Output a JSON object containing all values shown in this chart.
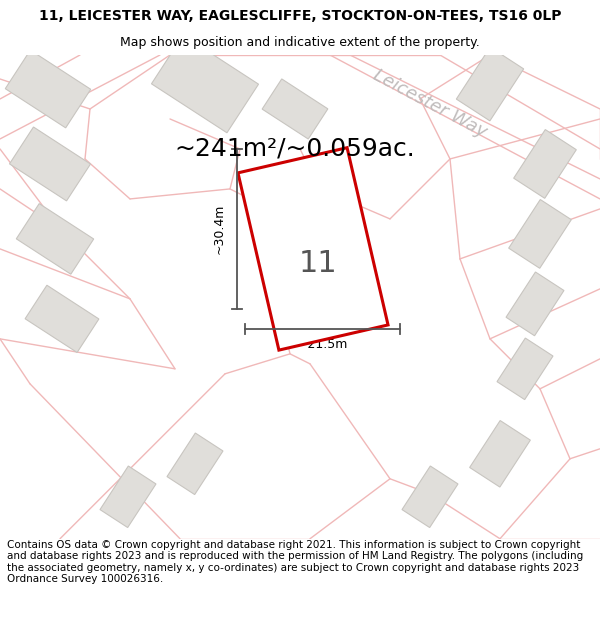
{
  "title_line1": "11, LEICESTER WAY, EAGLESCLIFFE, STOCKTON-ON-TEES, TS16 0LP",
  "title_line2": "Map shows position and indicative extent of the property.",
  "area_text": "~241m²/~0.059ac.",
  "property_number": "11",
  "dim_width": "~21.5m",
  "dim_height": "~30.4m",
  "street_label": "Leicester Way",
  "footer_text": "Contains OS data © Crown copyright and database right 2021. This information is subject to Crown copyright and database rights 2023 and is reproduced with the permission of HM Land Registry. The polygons (including the associated geometry, namely x, y co-ordinates) are subject to Crown copyright and database rights 2023 Ordnance Survey 100026316.",
  "bg_color": "#f7f6f4",
  "road_line_color": "#f0b8b8",
  "building_color": "#e0deda",
  "building_edge": "#c8c5c0",
  "property_fill": "#ffffff",
  "property_edge": "#cc0000",
  "dim_line_color": "#555555",
  "street_text_color": "#c0bcbc",
  "title_fontsize": 10,
  "subtitle_fontsize": 9,
  "area_fontsize": 18,
  "property_num_fontsize": 22,
  "dim_fontsize": 9,
  "street_fontsize": 13,
  "footer_fontsize": 7.5
}
